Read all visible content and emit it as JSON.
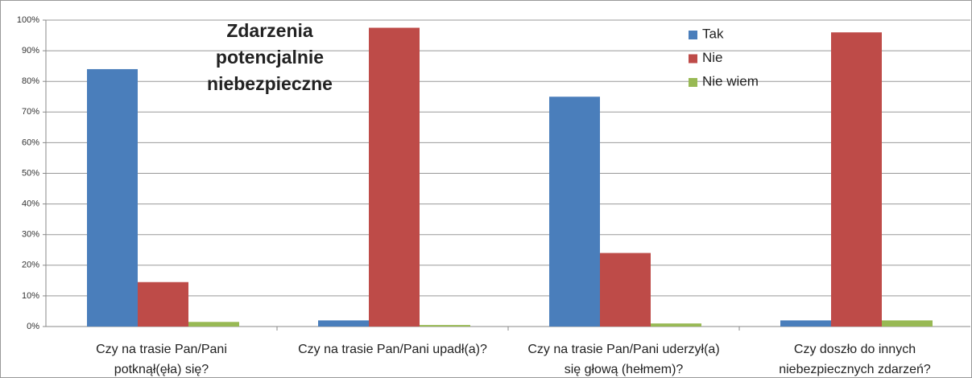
{
  "chart_data": {
    "type": "bar",
    "title": "Zdarzenia\npotencjalnie\nniebezpieczne",
    "categories": [
      "Czy na trasie Pan/Pani\npotknął(ęła) się?",
      "Czy na trasie Pan/Pani upadł(a)?",
      "Czy na trasie Pan/Pani uderzył(a)\nsię głową (hełmem)?",
      "Czy doszło do innych\nniebezpiecznych zdarzeń?"
    ],
    "series": [
      {
        "name": "Tak",
        "color": "#4a7ebb",
        "values": [
          84,
          2,
          75,
          2
        ]
      },
      {
        "name": "Nie",
        "color": "#be4b48",
        "values": [
          14.5,
          97.5,
          24,
          96
        ]
      },
      {
        "name": "Nie wiem",
        "color": "#98b954",
        "values": [
          1.5,
          0.5,
          1,
          2
        ]
      }
    ],
    "ylim": [
      0,
      100
    ],
    "yticks": [
      {
        "value": 0,
        "label": "0%"
      },
      {
        "value": 10,
        "label": "10%"
      },
      {
        "value": 20,
        "label": "20%"
      },
      {
        "value": 30,
        "label": "30%"
      },
      {
        "value": 40,
        "label": "40%"
      },
      {
        "value": 50,
        "label": "50%"
      },
      {
        "value": 60,
        "label": "60%"
      },
      {
        "value": 70,
        "label": "70%"
      },
      {
        "value": 80,
        "label": "80%"
      },
      {
        "value": 90,
        "label": "90%"
      },
      {
        "value": 100,
        "label": "100%"
      }
    ],
    "grid": true,
    "legend": "top-right"
  }
}
